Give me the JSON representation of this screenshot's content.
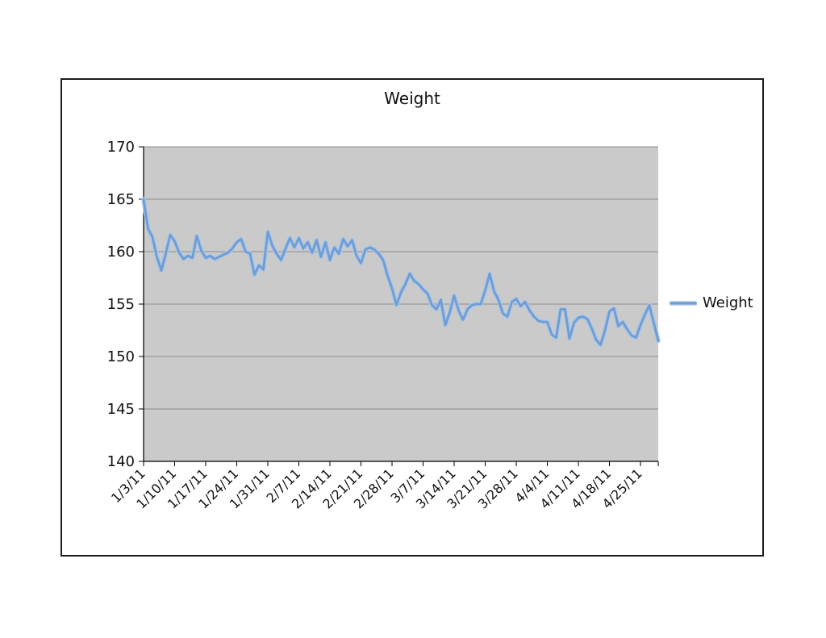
{
  "chart": {
    "title": "Weight",
    "legend": {
      "label": "Weight"
    }
  },
  "chart_data": {
    "type": "line",
    "title": "Weight",
    "xlabel": "",
    "ylabel": "",
    "ylim": [
      140,
      170
    ],
    "y_tick_step": 5,
    "y_tick_labels": [
      "170",
      "165",
      "160",
      "155",
      "150",
      "145",
      "140"
    ],
    "x_tick_labels": [
      "1/3/11",
      "1/10/11",
      "1/17/11",
      "1/24/11",
      "1/31/11",
      "2/7/11",
      "2/14/11",
      "2/21/11",
      "2/28/11",
      "3/7/11",
      "3/14/11",
      "3/21/11",
      "3/28/11",
      "4/4/11",
      "4/11/11",
      "4/18/11",
      "4/25/11"
    ],
    "grid": "horizontal",
    "legend_position": "right",
    "plot_background": "#cacaca",
    "gridline_color": "#8c8c8c",
    "axis_color": "#000000",
    "series": [
      {
        "name": "Weight",
        "color": "#6f9cd3",
        "halo_color": "#a9c7e9",
        "start_date": "1/3/11",
        "end_date": "4/29/11",
        "interval": "daily",
        "values": [
          165.0,
          162.2,
          161.4,
          159.5,
          158.2,
          159.8,
          161.6,
          161.0,
          159.9,
          159.3,
          159.6,
          159.4,
          161.5,
          160.1,
          159.4,
          159.6,
          159.3,
          159.5,
          159.7,
          159.9,
          160.3,
          160.9,
          161.2,
          160.0,
          159.8,
          157.8,
          158.7,
          158.3,
          161.9,
          160.6,
          159.8,
          159.2,
          160.3,
          161.3,
          160.4,
          161.3,
          160.3,
          160.9,
          159.9,
          161.1,
          159.5,
          160.9,
          159.2,
          160.4,
          159.8,
          161.2,
          160.5,
          161.1,
          159.6,
          158.9,
          160.2,
          160.4,
          160.2,
          159.8,
          159.2,
          157.7,
          156.5,
          154.9,
          156.1,
          156.9,
          157.9,
          157.2,
          156.9,
          156.4,
          156.0,
          154.9,
          154.5,
          155.4,
          153.0,
          154.2,
          155.8,
          154.4,
          153.5,
          154.5,
          154.9,
          155.0,
          155.0,
          156.3,
          157.9,
          156.2,
          155.4,
          154.1,
          153.8,
          155.2,
          155.5,
          154.8,
          155.2,
          154.4,
          153.8,
          153.4,
          153.3,
          153.3,
          152.1,
          151.8,
          154.5,
          154.5,
          151.7,
          153.2,
          153.7,
          153.8,
          153.6,
          152.7,
          151.6,
          151.1,
          152.5,
          154.3,
          154.6,
          152.9,
          153.3,
          152.6,
          152.0,
          151.8,
          153.0,
          154.0,
          154.9,
          153.2,
          151.5
        ]
      }
    ]
  }
}
